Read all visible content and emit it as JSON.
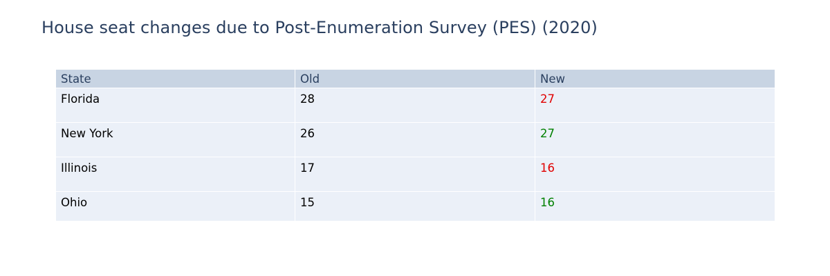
{
  "chart_data": {
    "type": "table",
    "title": "House seat changes due to Post-Enumeration Survey (PES) (2020)",
    "columns": [
      "State",
      "Old",
      "New"
    ],
    "rows": [
      {
        "state": "Florida",
        "old": "28",
        "new": "27",
        "new_color": "#e00000"
      },
      {
        "state": "New York",
        "old": "26",
        "new": "27",
        "new_color": "#008000"
      },
      {
        "state": "Illinois",
        "old": "17",
        "new": "16",
        "new_color": "#e00000"
      },
      {
        "state": "Ohio",
        "old": "15",
        "new": "16",
        "new_color": "#008000"
      }
    ],
    "colors": {
      "header_fill": "#c8d4e3",
      "cell_fill": "#ebf0f8",
      "header_text": "#2a3f5f",
      "increase": "#008000",
      "decrease": "#e00000"
    }
  }
}
